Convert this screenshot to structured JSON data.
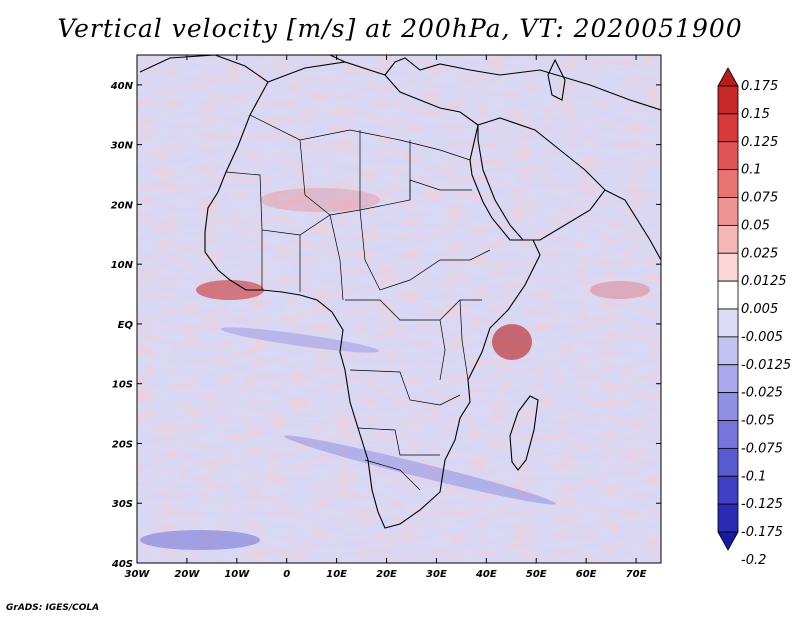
{
  "title": "Vertical velocity [m/s] at 200hPa, VT: 2020051900",
  "credit": "GrADS: IGES/COLA",
  "chart_data": {
    "type": "heatmap",
    "variable": "Vertical velocity",
    "units": "m/s",
    "level": "200hPa",
    "valid_time": "2020051900",
    "lon_range": [
      -30,
      75
    ],
    "lat_range": [
      -40,
      45
    ],
    "x_tick_labels": [
      {
        "lon": -30,
        "label": "30W"
      },
      {
        "lon": -20,
        "label": "20W"
      },
      {
        "lon": -10,
        "label": "10W"
      },
      {
        "lon": 0,
        "label": "0"
      },
      {
        "lon": 10,
        "label": "10E"
      },
      {
        "lon": 20,
        "label": "20E"
      },
      {
        "lon": 30,
        "label": "30E"
      },
      {
        "lon": 40,
        "label": "40E"
      },
      {
        "lon": 50,
        "label": "50E"
      },
      {
        "lon": 60,
        "label": "60E"
      },
      {
        "lon": 70,
        "label": "70E"
      }
    ],
    "y_tick_labels": [
      {
        "lat": 40,
        "label": "40N"
      },
      {
        "lat": 30,
        "label": "30N"
      },
      {
        "lat": 20,
        "label": "20N"
      },
      {
        "lat": 10,
        "label": "10N"
      },
      {
        "lat": 0,
        "label": "EQ"
      },
      {
        "lat": -10,
        "label": "10S"
      },
      {
        "lat": -20,
        "label": "20S"
      },
      {
        "lat": -30,
        "label": "30S"
      },
      {
        "lat": -40,
        "label": "40S"
      }
    ],
    "colorbar": {
      "levels": [
        "0.175",
        "0.15",
        "0.125",
        "0.1",
        "0.075",
        "0.05",
        "0.025",
        "0.0125",
        "0.005",
        "-0.005",
        "-0.0125",
        "-0.025",
        "-0.05",
        "-0.075",
        "-0.1",
        "-0.125",
        "-0.175",
        "-0.2"
      ],
      "colors": [
        "#b71c1c",
        "#c62828",
        "#d63a3a",
        "#e05555",
        "#e87474",
        "#ef9595",
        "#f5b6b6",
        "#fad6d6",
        "#ffffff",
        "#dcdcf7",
        "#c3c3f1",
        "#a9a9eb",
        "#8f8fe3",
        "#7575db",
        "#5a5ad0",
        "#4040c4",
        "#2a2ab5",
        "#1a1aa0"
      ]
    }
  }
}
